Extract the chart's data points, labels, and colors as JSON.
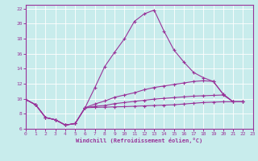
{
  "xlabel": "Windchill (Refroidissement éolien,°C)",
  "background_color": "#c8ecec",
  "line_color": "#993399",
  "xlim": [
    0,
    23
  ],
  "ylim": [
    6,
    22.5
  ],
  "yticks": [
    6,
    8,
    10,
    12,
    14,
    16,
    18,
    20,
    22
  ],
  "xticks": [
    0,
    1,
    2,
    3,
    4,
    5,
    6,
    7,
    8,
    9,
    10,
    11,
    12,
    13,
    14,
    15,
    16,
    17,
    18,
    19,
    20,
    21,
    22,
    23
  ],
  "x_vals": [
    0,
    1,
    2,
    3,
    4,
    5,
    6,
    7,
    8,
    9,
    10,
    11,
    12,
    13,
    14,
    15,
    16,
    17,
    18,
    19,
    20,
    21,
    22
  ],
  "series1": [
    9.9,
    9.2,
    7.5,
    7.2,
    6.5,
    6.7,
    8.8,
    11.5,
    14.3,
    16.2,
    18.0,
    20.3,
    21.3,
    21.8,
    19.0,
    16.5,
    14.9,
    13.5,
    12.8,
    12.3,
    10.6,
    9.6,
    9.6
  ],
  "series2": [
    9.9,
    9.2,
    7.5,
    7.2,
    6.5,
    6.7,
    8.8,
    9.3,
    9.7,
    10.2,
    10.5,
    10.8,
    11.2,
    11.5,
    11.7,
    11.9,
    12.1,
    12.3,
    12.4,
    12.3,
    10.6,
    9.6,
    9.6
  ],
  "series3": [
    9.9,
    9.2,
    7.5,
    7.2,
    6.5,
    6.7,
    8.8,
    9.0,
    9.1,
    9.35,
    9.5,
    9.65,
    9.8,
    9.95,
    10.05,
    10.15,
    10.25,
    10.35,
    10.4,
    10.45,
    10.5,
    9.6,
    9.6
  ],
  "series4": [
    9.9,
    9.2,
    7.5,
    7.2,
    6.5,
    6.7,
    8.8,
    8.85,
    8.88,
    8.92,
    8.95,
    9.0,
    9.05,
    9.1,
    9.15,
    9.2,
    9.3,
    9.4,
    9.5,
    9.55,
    9.6,
    9.6,
    9.6
  ]
}
